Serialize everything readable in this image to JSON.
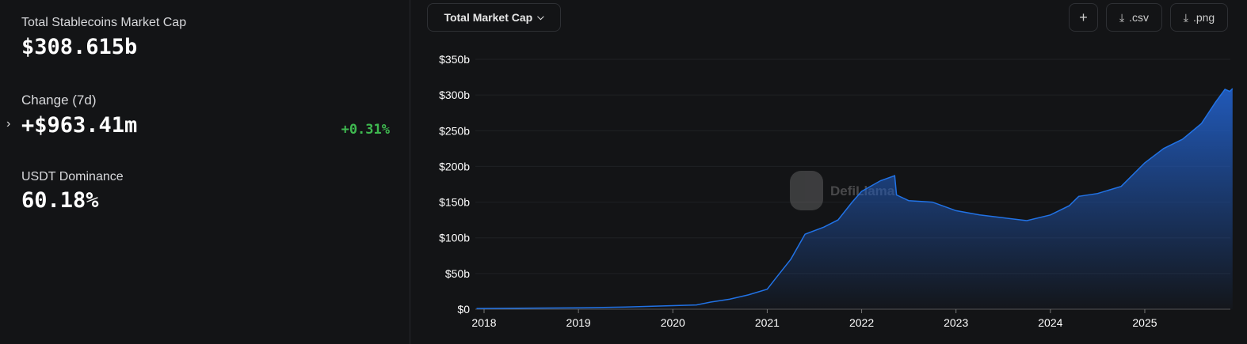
{
  "stats": {
    "mcap_label": "Total Stablecoins Market Cap",
    "mcap_value": "$308.615b",
    "change_label": "Change (7d)",
    "change_value": "+$963.41m",
    "change_pct": "+0.31%",
    "dom_label": "USDT Dominance",
    "dom_value": "60.18%"
  },
  "toolbar": {
    "metric_select": "Total Market Cap",
    "add_label": "+",
    "csv_label": ".csv",
    "png_label": ".png"
  },
  "watermark": "DefiLlama",
  "colors": {
    "line": "#2172e5",
    "positive": "#3fb950"
  },
  "chart_data": {
    "type": "area",
    "title": "Total Market Cap",
    "xlabel": "",
    "ylabel": "",
    "xlim": [
      2017.92,
      2025.93
    ],
    "ylim": [
      0,
      350
    ],
    "y_ticks": [
      "$0",
      "$50b",
      "$100b",
      "$150b",
      "$200b",
      "$250b",
      "$300b",
      "$350b"
    ],
    "x_ticks": [
      "2018",
      "2019",
      "2020",
      "2021",
      "2022",
      "2023",
      "2024",
      "2025"
    ],
    "x": [
      2017.92,
      2018.5,
      2019.0,
      2019.5,
      2020.0,
      2020.25,
      2020.4,
      2020.6,
      2020.8,
      2021.0,
      2021.1,
      2021.25,
      2021.4,
      2021.6,
      2021.75,
      2021.9,
      2022.0,
      2022.2,
      2022.35,
      2022.37,
      2022.5,
      2022.75,
      2023.0,
      2023.25,
      2023.5,
      2023.75,
      2024.0,
      2024.2,
      2024.3,
      2024.5,
      2024.75,
      2025.0,
      2025.2,
      2025.4,
      2025.6,
      2025.75,
      2025.85,
      2025.9,
      2025.93
    ],
    "values": [
      1,
      1.5,
      2,
      3,
      5,
      6,
      10,
      14,
      20,
      28,
      45,
      70,
      105,
      115,
      125,
      150,
      165,
      180,
      187,
      160,
      152,
      150,
      138,
      132,
      128,
      124,
      132,
      145,
      158,
      162,
      172,
      205,
      225,
      238,
      260,
      290,
      308,
      305,
      309
    ],
    "grid": true,
    "legend": "none"
  }
}
